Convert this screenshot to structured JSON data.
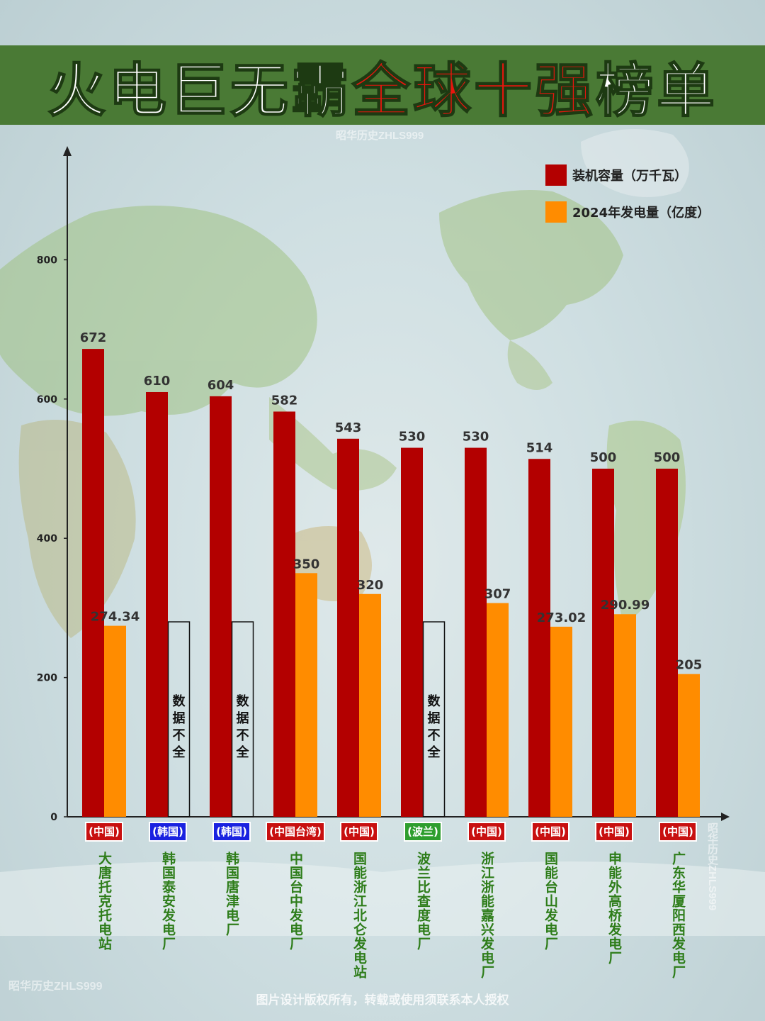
{
  "title": {
    "part1": "火电巨无霸",
    "part2": "全球十强",
    "part3": "榜单"
  },
  "watermarks": {
    "top": "昭华历史ZHLS999",
    "bottom_left": "昭华历史ZHLS999",
    "right": "昭华历史ZHLS999"
  },
  "footer": "图片设计版权所有，转载或使用须联系本人授权",
  "colors": {
    "capacity": "#b30000",
    "generation": "#ff8c00",
    "banner": "#4a7a35",
    "tag_red": "#c81010",
    "tag_blue": "#1a22e0",
    "tag_green": "#2e9e2e"
  },
  "chart_data": {
    "type": "bar",
    "title": "火电巨无霸全球十强榜单",
    "categories": [
      "大唐托克托电站",
      "韩国泰安发电厂",
      "韩国唐津电厂",
      "中国台中发电厂",
      "国能浙江北仑发电站",
      "波兰比查度电厂",
      "浙江浙能嘉兴发电厂",
      "国能台山发电厂",
      "申能外高桥发电厂",
      "广东华厦阳西发电厂"
    ],
    "regions": [
      "(中国)",
      "(韩国)",
      "(韩国)",
      "(中国台湾)",
      "(中国)",
      "(波兰)",
      "(中国)",
      "(中国)",
      "(中国)",
      "(中国)"
    ],
    "region_colors": [
      "red",
      "blue",
      "blue",
      "red",
      "red",
      "green",
      "red",
      "red",
      "red",
      "red"
    ],
    "series": [
      {
        "name": "装机容量（万千瓦）",
        "color": "#b30000",
        "values": [
          672,
          610,
          604,
          582,
          543,
          530,
          530,
          514,
          500,
          500
        ],
        "labels": [
          "672",
          "610",
          "604",
          "582",
          "543",
          "530",
          "530",
          "514",
          "500",
          "500"
        ]
      },
      {
        "name": "2024年发电量（亿度）",
        "color": "#ff8c00",
        "values": [
          274.34,
          null,
          null,
          350,
          320,
          null,
          307,
          273.02,
          290.99,
          205
        ],
        "labels": [
          "274.34",
          "",
          "",
          "350",
          "320",
          "",
          "307",
          "273.02",
          "290.99",
          "205"
        ]
      }
    ],
    "missing_label": "数据不全",
    "yticks": [
      0,
      200,
      400,
      600,
      800
    ],
    "ylim": [
      0,
      900
    ],
    "legend": "top-right",
    "grid": false
  }
}
